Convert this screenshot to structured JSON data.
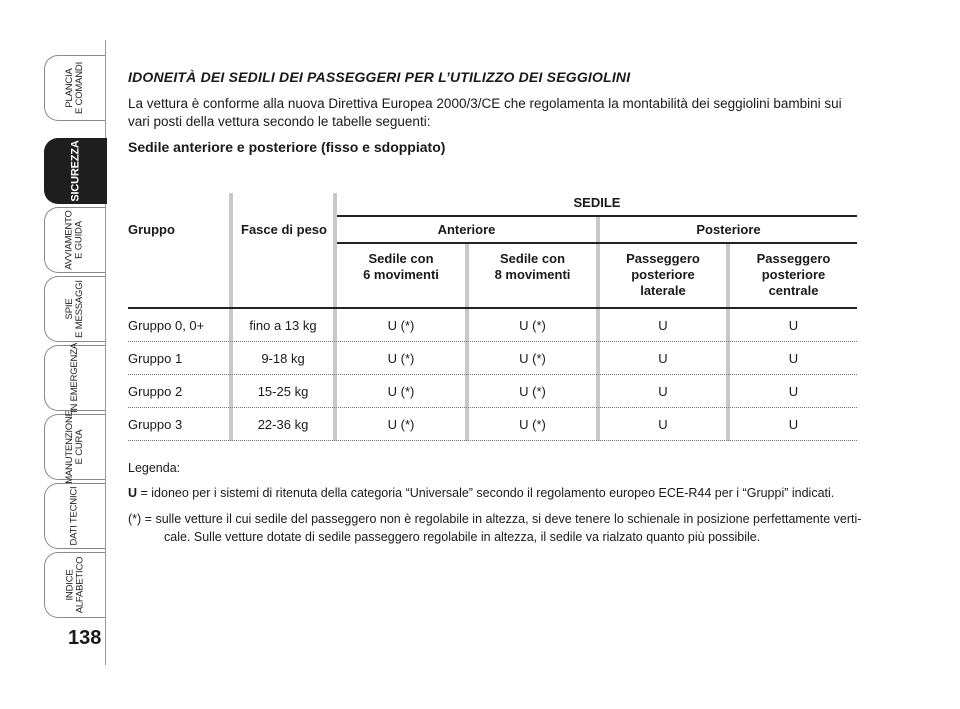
{
  "sidebar": {
    "tabs": [
      {
        "label": "PLANCIA\nE COMANDI"
      },
      {
        "label": "SICUREZZA"
      },
      {
        "label": "AVVIAMENTO\nE GUIDA"
      },
      {
        "label": "SPIE\nE MESSAGGI"
      },
      {
        "label": "IN EMERGENZA"
      },
      {
        "label": "MANUTENZIONE\nE CURA"
      },
      {
        "label": "DATI TECNICI"
      },
      {
        "label": "INDICE\nALFABETICO"
      }
    ],
    "page_number": "138"
  },
  "content": {
    "title": "IDONEITÀ DEI SEDILI DEI PASSEGGERI PER L’UTILIZZO DEI SEGGIOLINI",
    "intro": "La vettura è conforme alla nuova Direttiva Europea 2000/3/CE che regolamenta la montabilità dei seggiolini bambini sui vari posti della vettura secondo le tabelle seguenti:",
    "subtitle": "Sedile anteriore e posteriore (fisso e sdoppiato)"
  },
  "table": {
    "header_sedile": "SEDILE",
    "col_gruppo": "Gruppo",
    "col_peso": "Fasce di peso",
    "anteriore": "Anteriore",
    "posteriore": "Posteriore",
    "sub": [
      "Sedile con\n6 movimenti",
      "Sedile con\n8 movimenti",
      "Passeggero\nposteriore\nlaterale",
      "Passeggero\nposteriore\ncentrale"
    ],
    "rows": [
      {
        "gruppo": "Gruppo 0, 0+",
        "peso": "fino a 13 kg",
        "c1": "U (*)",
        "c2": "U (*)",
        "c3": "U",
        "c4": "U"
      },
      {
        "gruppo": "Gruppo 1",
        "peso": "9-18 kg",
        "c1": "U (*)",
        "c2": "U (*)",
        "c3": "U",
        "c4": "U"
      },
      {
        "gruppo": "Gruppo 2",
        "peso": "15-25 kg",
        "c1": "U (*)",
        "c2": "U (*)",
        "c3": "U",
        "c4": "U"
      },
      {
        "gruppo": "Gruppo 3",
        "peso": "22-36 kg",
        "c1": "U (*)",
        "c2": "U (*)",
        "c3": "U",
        "c4": "U"
      }
    ]
  },
  "legend": {
    "title": "Legenda:",
    "u_key": "U",
    "u_text": " = idoneo per i sistemi di ritenuta della categoria “Universale” secondo il regolamento europeo ECE-R44 per i “Gruppi” indicati.",
    "star_key": "(*) = ",
    "star_text": "sulle vetture il cui sedile del passeggero non è regolabile in altezza, si deve tenere lo schienale in posizione perfettamente verti-",
    "star_text2": "cale. Sulle vetture dotate di sedile passeggero regolabile in altezza, il sedile va rialzato quanto più possibile."
  }
}
